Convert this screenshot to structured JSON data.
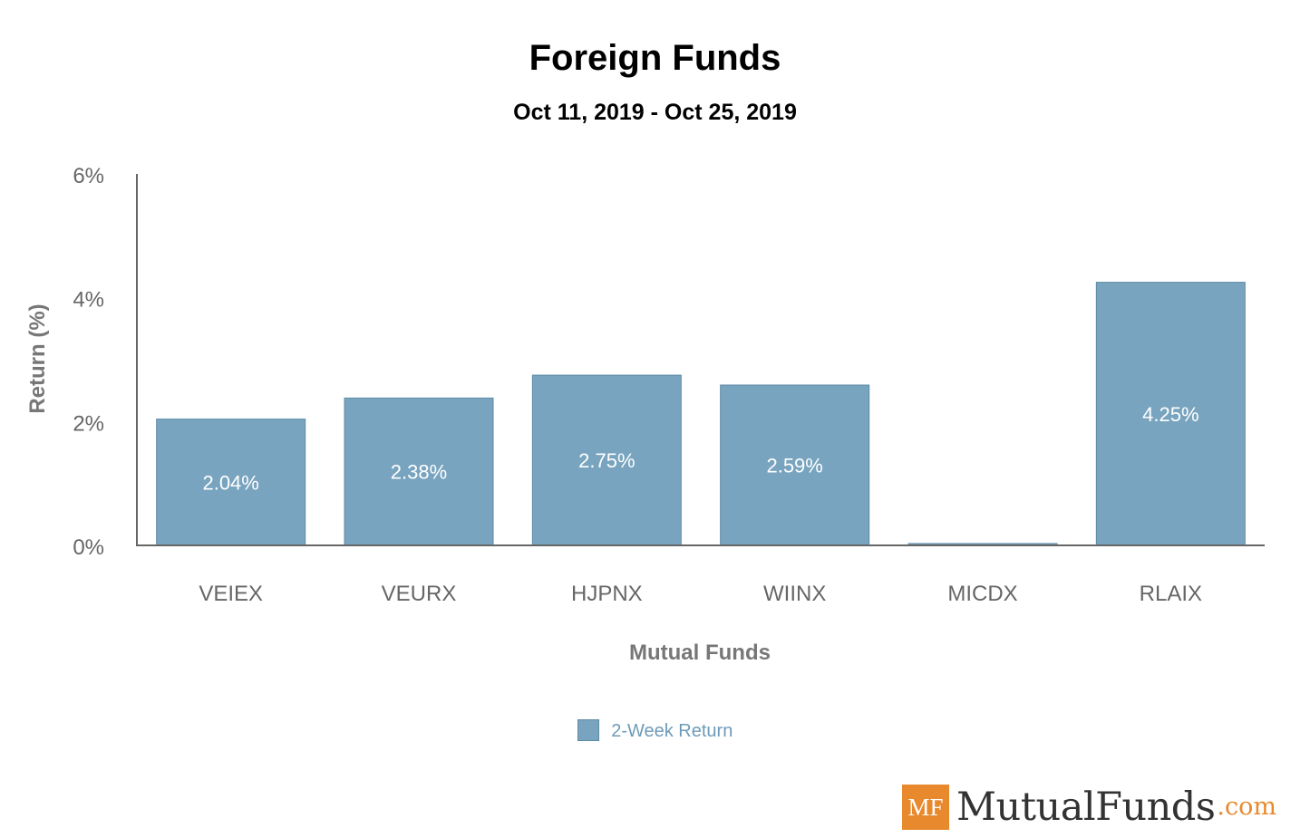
{
  "chart_data": {
    "type": "bar",
    "title": "Foreign Funds",
    "subtitle": "Oct 11, 2019 - Oct 25, 2019",
    "xlabel": "Mutual Funds",
    "ylabel": "Return (%)",
    "categories": [
      "VEIEX",
      "VEURX",
      "HJPNX",
      "WIINX",
      "MICDX",
      "RLAIX"
    ],
    "series": [
      {
        "name": "2-Week Return",
        "values": [
          2.04,
          2.38,
          2.75,
          2.59,
          0.03,
          4.25
        ],
        "data_labels": [
          "2.04%",
          "2.38%",
          "2.75%",
          "2.59%",
          "",
          "4.25%"
        ]
      }
    ],
    "ylim": [
      0,
      6
    ],
    "yticks": [
      0,
      2,
      4,
      6
    ],
    "ytick_labels": [
      "0%",
      "2%",
      "4%",
      "6%"
    ],
    "grid": false,
    "legend_position": "bottom"
  },
  "colors": {
    "bar": "#78a4bf",
    "bar_border": "#5f8aa6",
    "axis": "#666666",
    "tick_text": "#666666",
    "data_label": "#ffffff",
    "legend_text": "#6f9bb8",
    "brand_accent": "#e8892d"
  },
  "branding": {
    "mark": "MF",
    "name": "MutualFunds",
    "tld": ".com"
  }
}
